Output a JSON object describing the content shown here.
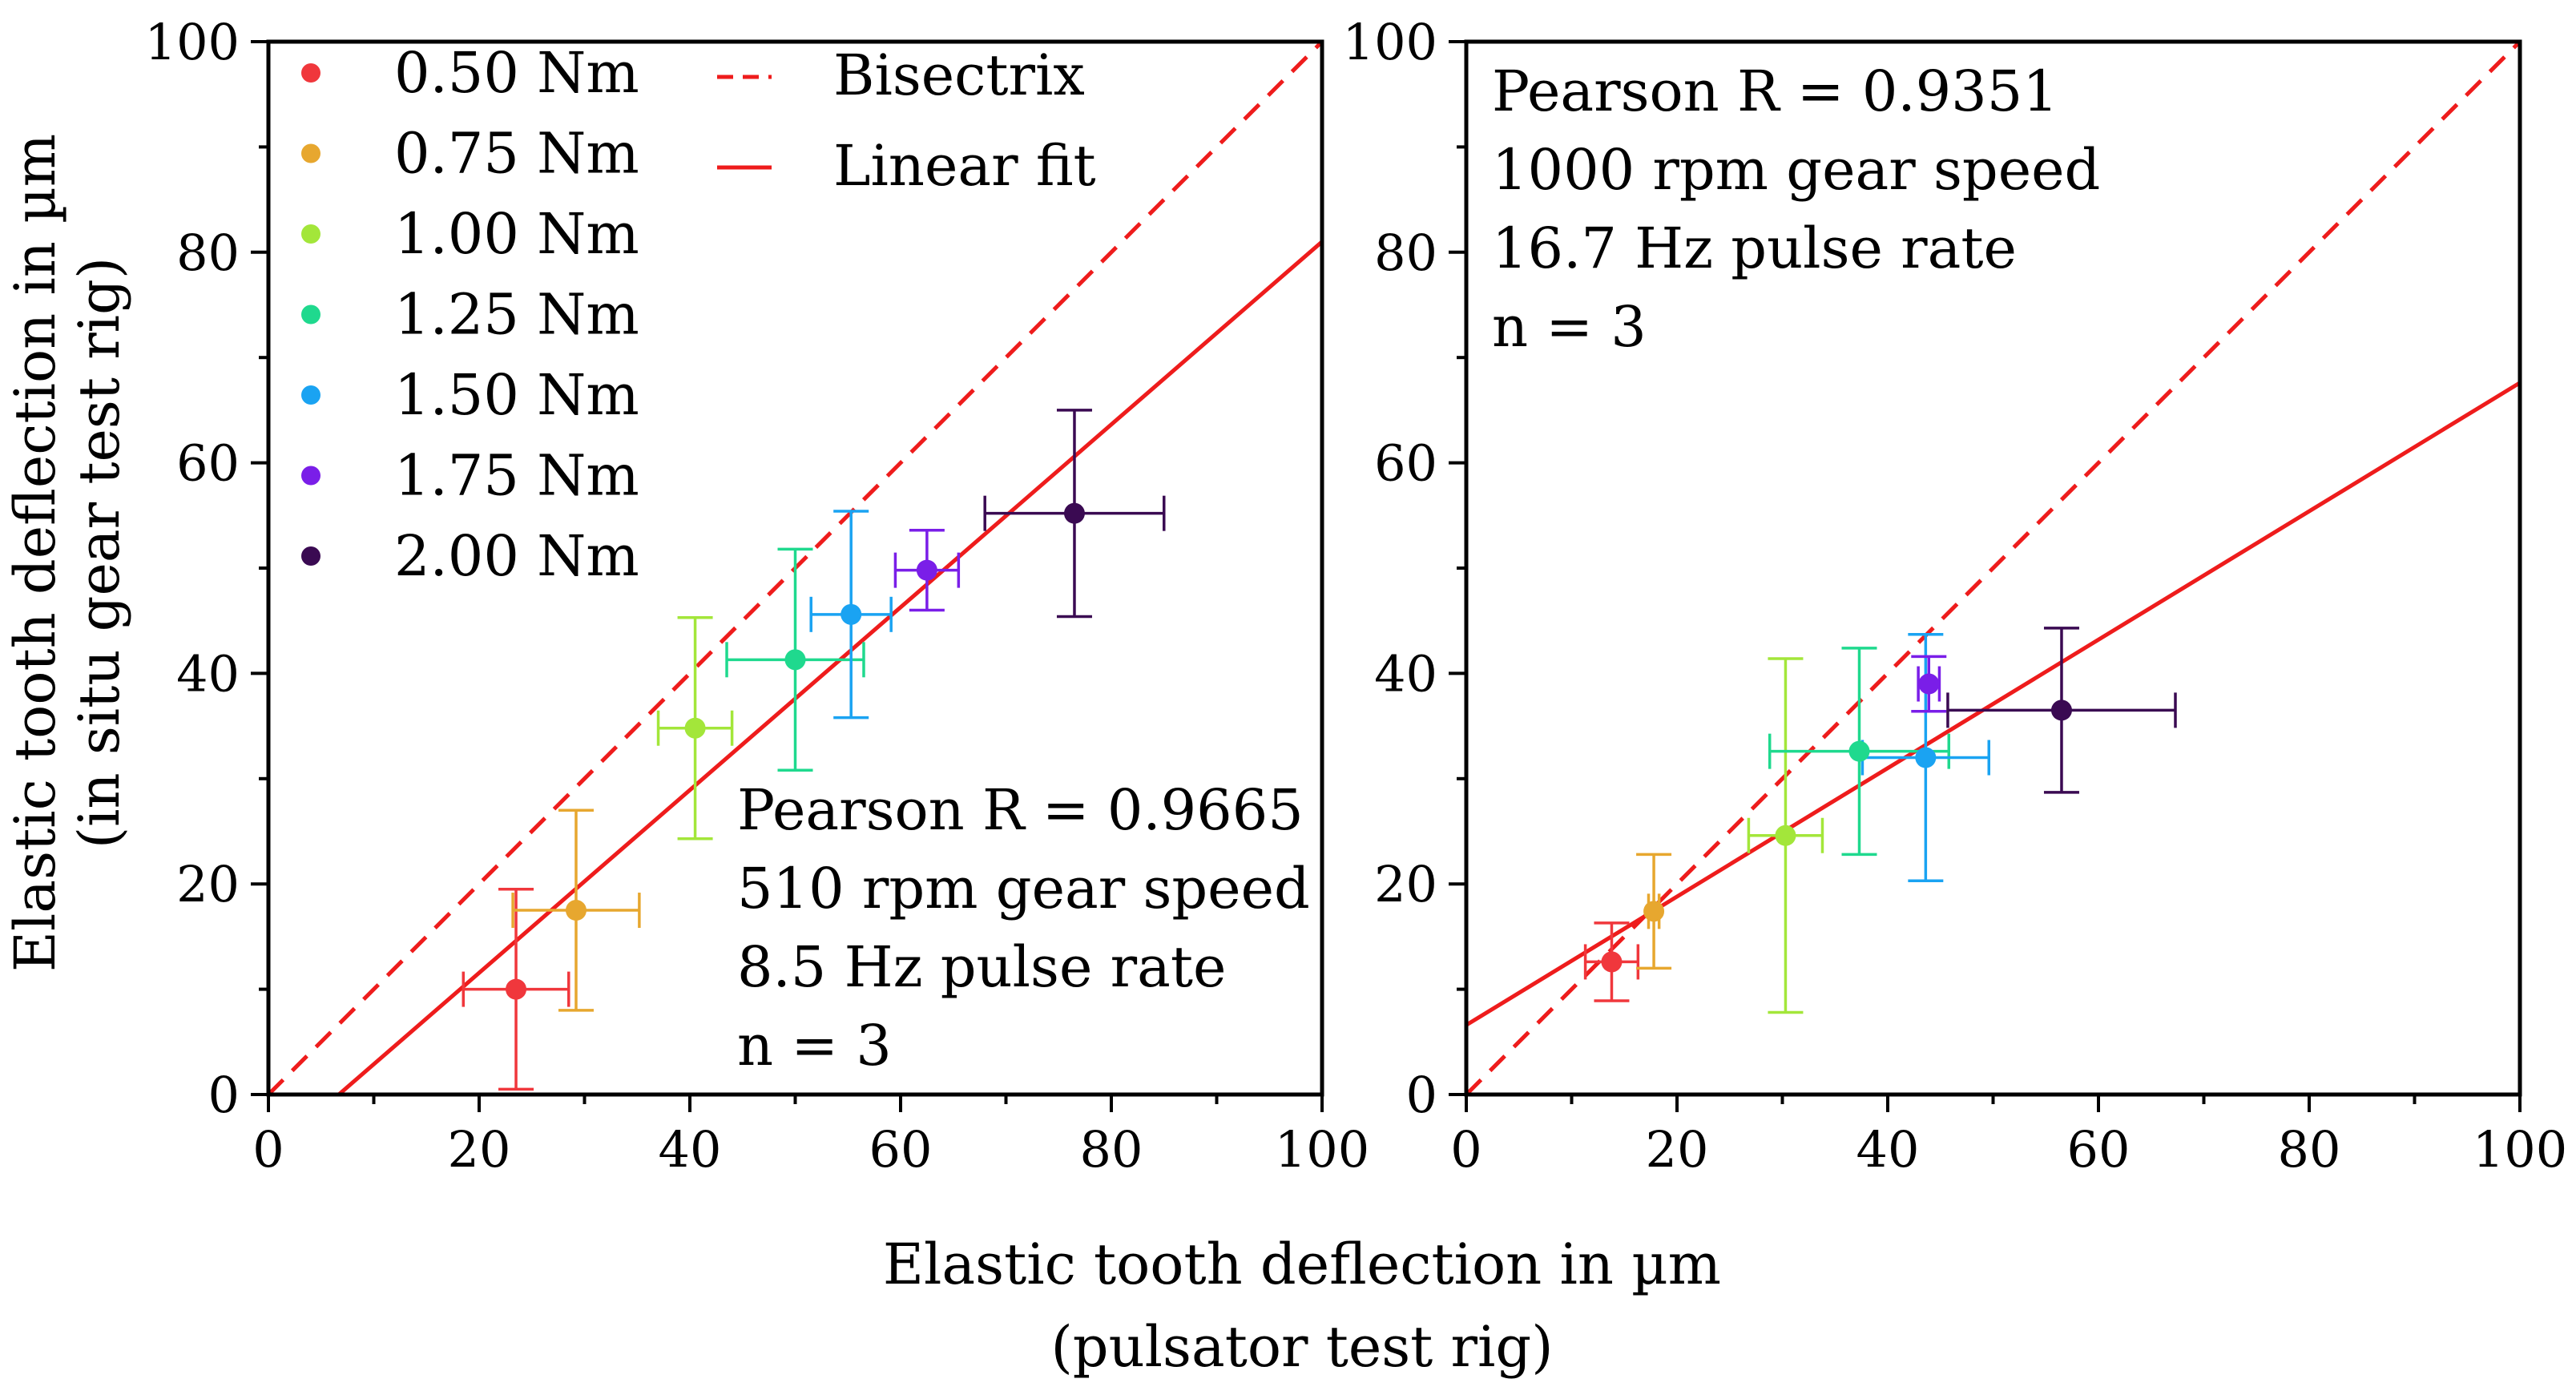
{
  "chart_data": [
    {
      "type": "scatter",
      "panel": "left",
      "xlim": [
        0,
        100
      ],
      "ylim": [
        0,
        100
      ],
      "x_ticks": [
        "0",
        "20",
        "40",
        "60",
        "80",
        "100"
      ],
      "y_ticks": [
        "0",
        "20",
        "40",
        "60",
        "80",
        "100"
      ],
      "ylabel_line1": "Elastic tooth deflection in µm",
      "ylabel_line2": "(in situ gear test rig)",
      "legend": {
        "placement": "top-left",
        "items": [
          "0.50 Nm",
          "0.75 Nm",
          "1.00 Nm",
          "1.25 Nm",
          "1.50 Nm",
          "1.75 Nm",
          "2.00 Nm"
        ],
        "line_items": [
          "Bisectrix",
          "Linear fit"
        ]
      },
      "annotation": [
        "Pearson R = 0.9665",
        "510 rpm gear speed",
        "8.5 Hz pulse rate",
        "n = 3"
      ],
      "points": [
        {
          "label": "0.50 Nm",
          "x": 23.5,
          "y": 10.0,
          "xerr": 5.0,
          "yerr": 9.5,
          "color": "#f0373c"
        },
        {
          "label": "0.75 Nm",
          "x": 29.2,
          "y": 17.5,
          "xerr": 6.0,
          "yerr": 9.5,
          "color": "#e7a72f"
        },
        {
          "label": "1.00 Nm",
          "x": 40.5,
          "y": 34.8,
          "xerr": 3.5,
          "yerr": 10.5,
          "color": "#a3e63a"
        },
        {
          "label": "1.25 Nm",
          "x": 50.0,
          "y": 41.3,
          "xerr": 6.5,
          "yerr": 10.5,
          "color": "#1fd98e"
        },
        {
          "label": "1.50 Nm",
          "x": 55.3,
          "y": 45.6,
          "xerr": 3.8,
          "yerr": 9.8,
          "color": "#1aa3f2"
        },
        {
          "label": "1.75 Nm",
          "x": 62.5,
          "y": 49.8,
          "xerr": 3.0,
          "yerr": 3.8,
          "color": "#7a1ee8"
        },
        {
          "label": "2.00 Nm",
          "x": 76.5,
          "y": 55.2,
          "xerr": 8.5,
          "yerr": 9.8,
          "color": "#3a0a52"
        }
      ],
      "bisectrix": {
        "slope": 1.0,
        "intercept": 0.0
      },
      "linear_fit": {
        "slope": 0.868,
        "intercept": -5.8
      }
    },
    {
      "type": "scatter",
      "panel": "right",
      "xlim": [
        0,
        100
      ],
      "ylim": [
        0,
        100
      ],
      "x_ticks": [
        "0",
        "20",
        "40",
        "60",
        "80",
        "100"
      ],
      "y_ticks": [
        "0",
        "20",
        "40",
        "60",
        "80",
        "100"
      ],
      "annotation": [
        "Pearson R = 0.9351",
        "1000 rpm gear speed",
        "16.7 Hz pulse rate",
        "n = 3"
      ],
      "points": [
        {
          "label": "0.50 Nm",
          "x": 13.8,
          "y": 12.6,
          "xerr": 2.5,
          "yerr": 3.7,
          "color": "#f0373c"
        },
        {
          "label": "0.75 Nm",
          "x": 17.8,
          "y": 17.4,
          "xerr": 0.5,
          "yerr": 5.4,
          "color": "#e7a72f"
        },
        {
          "label": "1.00 Nm",
          "x": 30.3,
          "y": 24.6,
          "xerr": 3.5,
          "yerr": 16.8,
          "color": "#a3e63a"
        },
        {
          "label": "1.25 Nm",
          "x": 37.3,
          "y": 32.6,
          "xerr": 8.5,
          "yerr": 9.8,
          "color": "#1fd98e"
        },
        {
          "label": "1.50 Nm",
          "x": 43.6,
          "y": 32.0,
          "xerr": 6.0,
          "yerr": 11.7,
          "color": "#1aa3f2"
        },
        {
          "label": "1.75 Nm",
          "x": 43.9,
          "y": 39.0,
          "xerr": 1.0,
          "yerr": 2.6,
          "color": "#7a1ee8"
        },
        {
          "label": "2.00 Nm",
          "x": 56.5,
          "y": 36.5,
          "xerr": 10.8,
          "yerr": 7.8,
          "color": "#3a0a52"
        }
      ],
      "bisectrix": {
        "slope": 1.0,
        "intercept": 0.0
      },
      "linear_fit": {
        "slope": 0.61,
        "intercept": 6.6
      }
    }
  ],
  "shared_xlabel_line1": "Elastic tooth deflection in µm",
  "shared_xlabel_line2": "(pulsator test rig)",
  "colors": {
    "line": "#ee1c1c",
    "axis": "#000000"
  }
}
